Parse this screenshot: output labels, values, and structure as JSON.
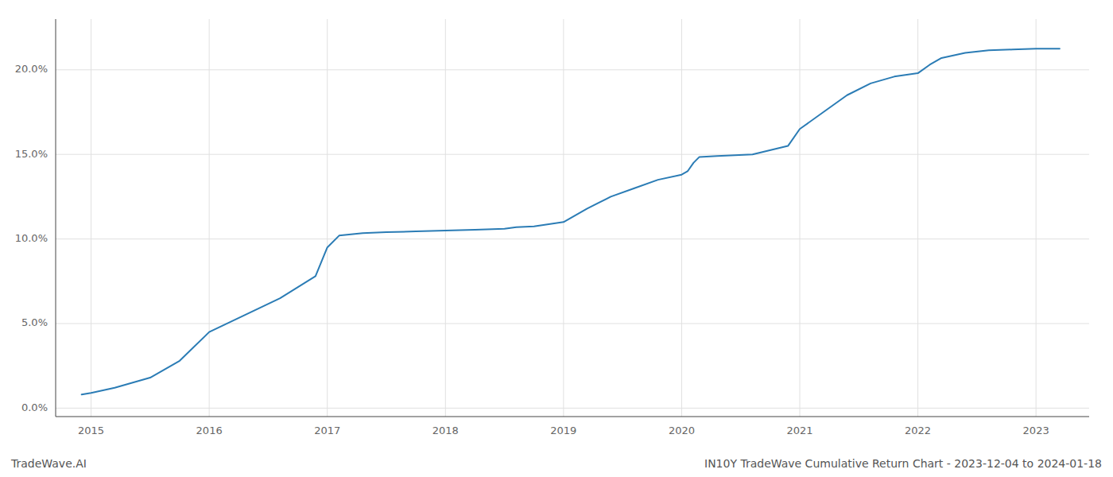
{
  "chart_data": {
    "type": "line",
    "x": [
      2014.92,
      2015.0,
      2015.2,
      2015.5,
      2015.75,
      2016.0,
      2016.3,
      2016.6,
      2016.9,
      2017.0,
      2017.1,
      2017.3,
      2017.5,
      2017.75,
      2018.0,
      2018.25,
      2018.5,
      2018.6,
      2018.75,
      2019.0,
      2019.2,
      2019.4,
      2019.6,
      2019.8,
      2020.0,
      2020.05,
      2020.1,
      2020.15,
      2020.3,
      2020.6,
      2020.9,
      2021.0,
      2021.2,
      2021.4,
      2021.6,
      2021.8,
      2022.0,
      2022.1,
      2022.2,
      2022.4,
      2022.6,
      2022.8,
      2023.0,
      2023.1,
      2023.2
    ],
    "values": [
      0.8,
      0.9,
      1.2,
      1.8,
      2.8,
      4.5,
      5.5,
      6.5,
      7.8,
      9.5,
      10.2,
      10.35,
      10.4,
      10.45,
      10.5,
      10.55,
      10.6,
      10.7,
      10.75,
      11.0,
      11.8,
      12.5,
      13.0,
      13.5,
      13.8,
      14.0,
      14.5,
      14.85,
      14.9,
      15.0,
      15.5,
      16.5,
      17.5,
      18.5,
      19.2,
      19.6,
      19.8,
      20.3,
      20.7,
      21.0,
      21.15,
      21.2,
      21.25,
      21.25,
      21.25
    ],
    "color": "#2b7cb5",
    "xlim": [
      2014.7,
      2023.45
    ],
    "ylim": [
      -0.5,
      23.0
    ],
    "xticks": [
      2015,
      2016,
      2017,
      2018,
      2019,
      2020,
      2021,
      2022,
      2023
    ],
    "yticks": [
      {
        "value": 0.0,
        "label": "0.0%"
      },
      {
        "value": 5.0,
        "label": "5.0%"
      },
      {
        "value": 10.0,
        "label": "10.0%"
      },
      {
        "value": 15.0,
        "label": "15.0%"
      },
      {
        "value": 20.0,
        "label": "20.0%"
      }
    ],
    "grid": true,
    "annotations": [
      "TradeWave.AI",
      "IN10Y TradeWave Cumulative Return Chart - 2023-12-04 to 2024-01-18"
    ]
  }
}
